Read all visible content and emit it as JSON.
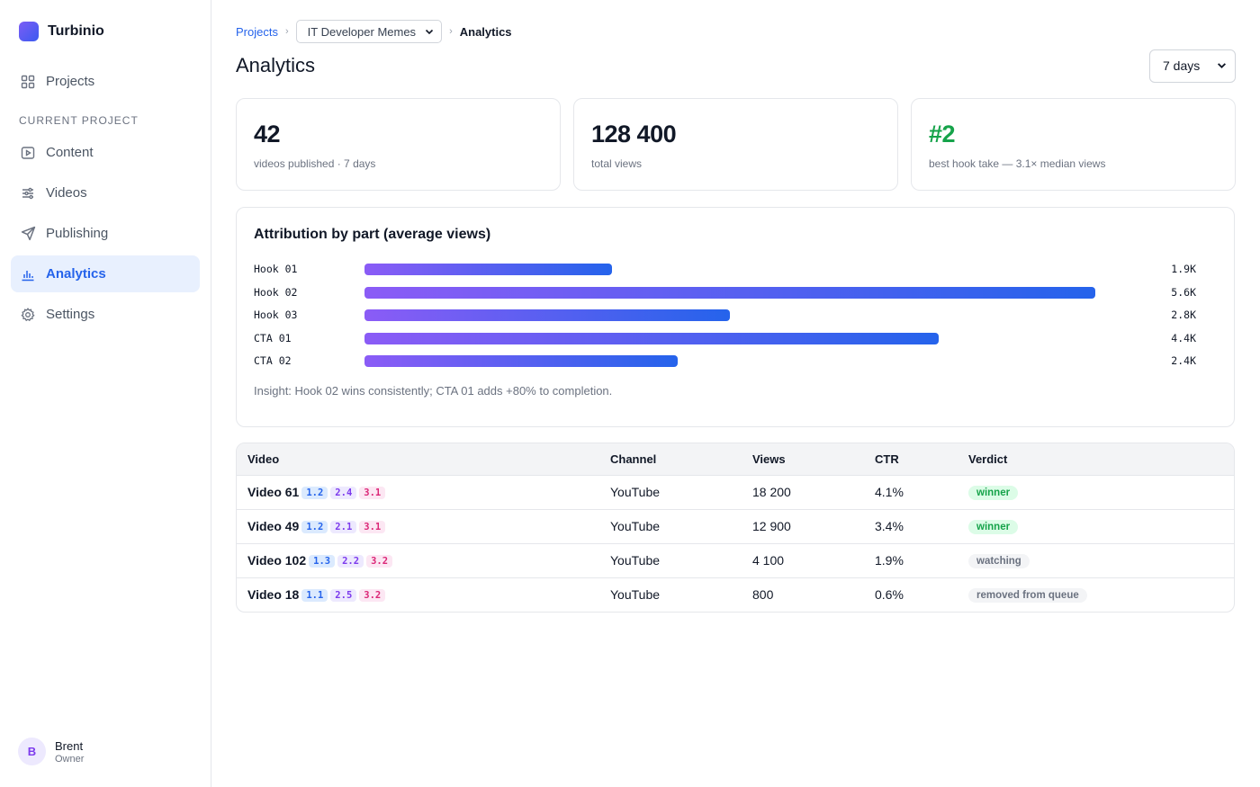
{
  "brand": {
    "name": "Turbinio",
    "logo_color_start": "#7c5cf5",
    "logo_color_end": "#3b5bf0"
  },
  "sidebar": {
    "top_items": [
      {
        "label": "Projects",
        "icon": "grid-icon"
      }
    ],
    "section_label": "CURRENT PROJECT",
    "items": [
      {
        "label": "Content",
        "icon": "play-square-icon"
      },
      {
        "label": "Videos",
        "icon": "sliders-icon"
      },
      {
        "label": "Publishing",
        "icon": "send-icon"
      },
      {
        "label": "Analytics",
        "icon": "bar-chart-icon",
        "active": true
      },
      {
        "label": "Settings",
        "icon": "gear-icon"
      }
    ],
    "user": {
      "initial": "B",
      "name": "Brent",
      "role": "Owner"
    }
  },
  "breadcrumb": {
    "root": "Projects",
    "project_select": "IT Developer Memes",
    "current": "Analytics"
  },
  "page": {
    "title": "Analytics",
    "range_select": "7 days"
  },
  "stats": [
    {
      "value": "42",
      "label": "videos published · 7 days"
    },
    {
      "value": "128 400",
      "label": "total views"
    },
    {
      "value": "#2",
      "label": "best hook take — 3.1× median views",
      "color": "#16a34a"
    }
  ],
  "attribution": {
    "title": "Attribution by part (average views)",
    "insight": "Insight: Hook 02 wins consistently; CTA 01 adds +80% to completion."
  },
  "chart_data": {
    "type": "bar",
    "orientation": "horizontal",
    "title": "Attribution by part (average views)",
    "categories": [
      "Hook 01",
      "Hook 02",
      "Hook 03",
      "CTA 01",
      "CTA 02"
    ],
    "values": [
      1900,
      5600,
      2800,
      4400,
      2400
    ],
    "value_labels": [
      "1.9K",
      "5.6K",
      "2.8K",
      "4.4K",
      "2.4K"
    ],
    "xlim": [
      0,
      6900
    ],
    "grid": false,
    "bar_gradient": [
      "#8b5cf6",
      "#2563eb"
    ]
  },
  "table": {
    "headers": [
      "Video",
      "Channel",
      "Views",
      "CTR",
      "Verdict"
    ],
    "rows": [
      {
        "video": "Video 61",
        "tags": [
          "1.2",
          "2.4",
          "3.1"
        ],
        "channel": "YouTube",
        "views": "18 200",
        "ctr": "4.1%",
        "verdict": "winner",
        "verdict_type": "winner"
      },
      {
        "video": "Video 49",
        "tags": [
          "1.2",
          "2.1",
          "3.1"
        ],
        "channel": "YouTube",
        "views": "12 900",
        "ctr": "3.4%",
        "verdict": "winner",
        "verdict_type": "winner"
      },
      {
        "video": "Video 102",
        "tags": [
          "1.3",
          "2.2",
          "3.2"
        ],
        "channel": "YouTube",
        "views": "4 100",
        "ctr": "1.9%",
        "verdict": "watching",
        "verdict_type": "neutral"
      },
      {
        "video": "Video 18",
        "tags": [
          "1.1",
          "2.5",
          "3.2"
        ],
        "channel": "YouTube",
        "views": "800",
        "ctr": "0.6%",
        "verdict": "removed from queue",
        "verdict_type": "neutral"
      }
    ]
  }
}
